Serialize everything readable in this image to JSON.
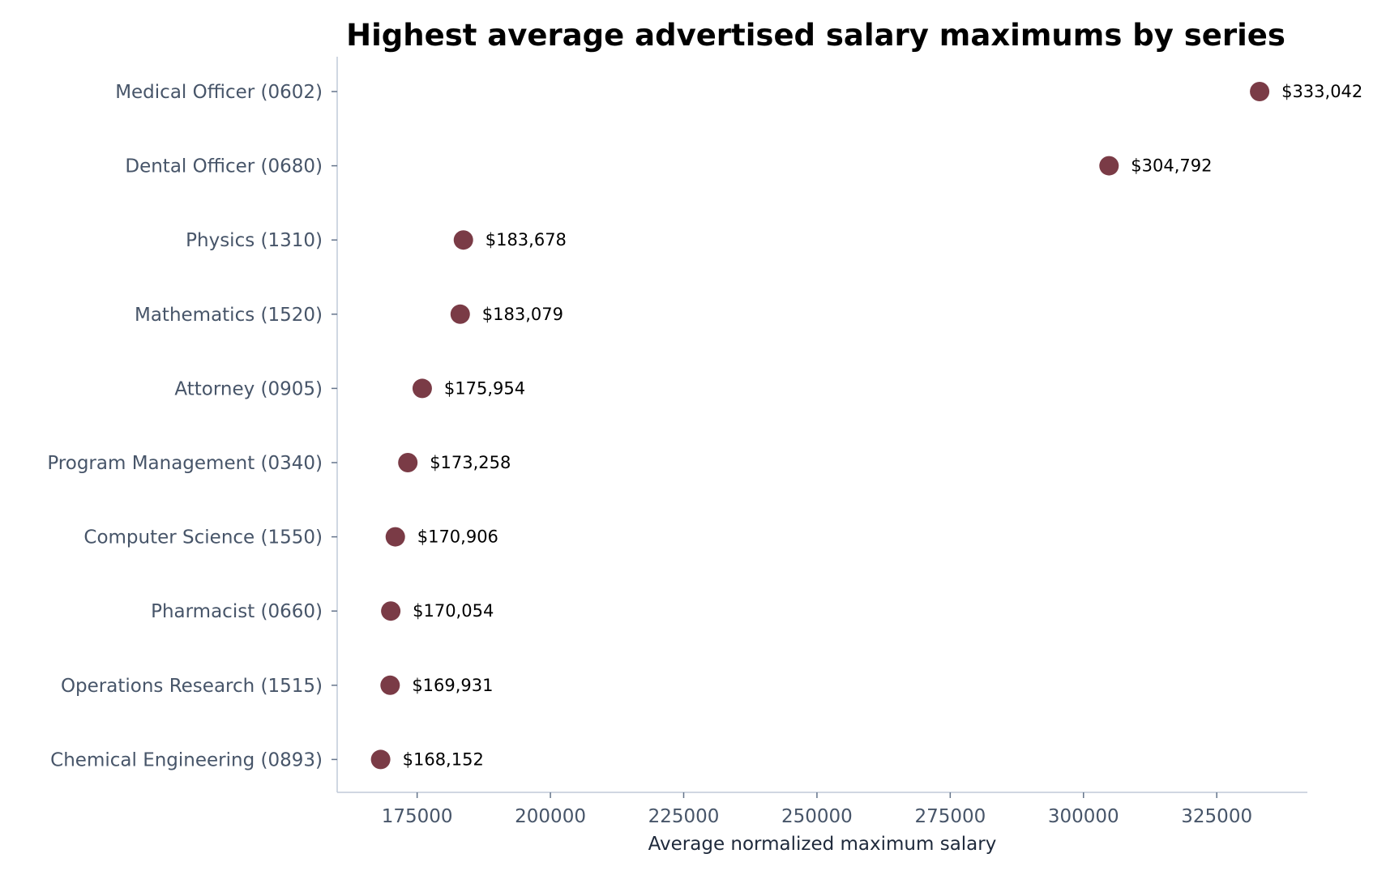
{
  "chart_data": {
    "type": "scatter",
    "title": "Highest average advertised salary maximums by series",
    "xlabel": "Average normalized maximum salary",
    "ylabel": "",
    "xlim": [
      160000,
      342000
    ],
    "x_ticks": [
      175000,
      200000,
      225000,
      250000,
      275000,
      300000,
      325000
    ],
    "x_tick_labels": [
      "175000",
      "200000",
      "225000",
      "250000",
      "275000",
      "300000",
      "325000"
    ],
    "grid": false,
    "legend": "none",
    "marker_color": "#7a3b46",
    "categories": [
      "Medical Officer (0602)",
      "Dental Officer (0680)",
      "Physics (1310)",
      "Mathematics (1520)",
      "Attorney (0905)",
      "Program Management (0340)",
      "Computer Science (1550)",
      "Pharmacist (0660)",
      "Operations Research (1515)",
      "Chemical Engineering (0893)"
    ],
    "values": [
      333042,
      304792,
      183678,
      183079,
      175954,
      173258,
      170906,
      170054,
      169931,
      168152
    ],
    "data_labels": [
      "$333,042",
      "$304,792",
      "$183,678",
      "$183,079",
      "$175,954",
      "$173,258",
      "$170,906",
      "$170,054",
      "$169,931",
      "$168,152"
    ]
  }
}
